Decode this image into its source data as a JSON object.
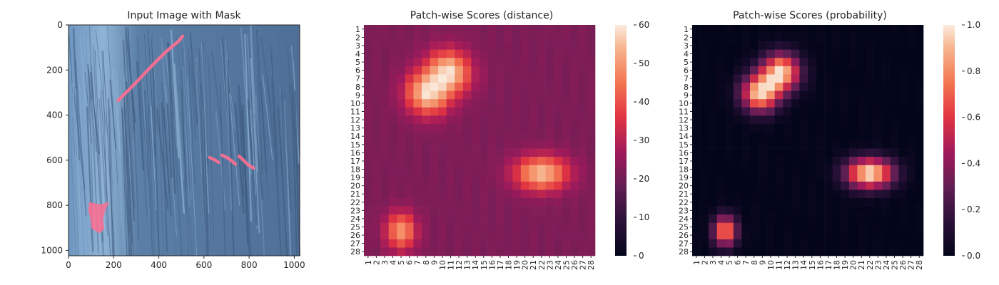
{
  "chart_data": [
    {
      "type": "image",
      "title": "Input Image with Mask",
      "xlabel": "",
      "ylabel": "",
      "xlim": [
        0,
        1024
      ],
      "ylim": [
        1024,
        0
      ],
      "xticks": [
        0,
        200,
        400,
        600,
        800,
        1000
      ],
      "yticks": [
        0,
        200,
        400,
        600,
        800,
        1000
      ],
      "image_colors": {
        "base": "#5b7fa6",
        "dark_grain": "#3e5a7e",
        "light_grain": "#8fb3d6",
        "mask": "#ff6f91"
      },
      "mask_regions": [
        {
          "kind": "line",
          "points": [
            [
              220,
              335
            ],
            [
              290,
              265
            ],
            [
              370,
              180
            ],
            [
              430,
              120
            ],
            [
              490,
              70
            ],
            [
              505,
              50
            ]
          ]
        },
        {
          "kind": "line",
          "points": [
            [
              625,
              588
            ],
            [
              650,
              600
            ],
            [
              665,
              610
            ]
          ]
        },
        {
          "kind": "line",
          "points": [
            [
              680,
              578
            ],
            [
              705,
              590
            ],
            [
              725,
              605
            ],
            [
              740,
              618
            ]
          ]
        },
        {
          "kind": "line",
          "points": [
            [
              755,
              582
            ],
            [
              775,
              600
            ],
            [
              795,
              620
            ],
            [
              820,
              635
            ]
          ]
        },
        {
          "kind": "blob",
          "points": [
            [
              95,
              790
            ],
            [
              140,
              800
            ],
            [
              175,
              790
            ],
            [
              160,
              820
            ],
            [
              150,
              860
            ],
            [
              155,
              905
            ],
            [
              135,
              920
            ],
            [
              105,
              900
            ],
            [
              100,
              860
            ],
            [
              90,
              820
            ]
          ]
        }
      ]
    },
    {
      "type": "heatmap",
      "title": "Patch-wise Scores (distance)",
      "rows": 28,
      "cols": 28,
      "labels": [
        "1",
        "2",
        "3",
        "4",
        "5",
        "6",
        "7",
        "8",
        "9",
        "10",
        "11",
        "12",
        "13",
        "14",
        "15",
        "16",
        "17",
        "18",
        "19",
        "20",
        "21",
        "22",
        "23",
        "24",
        "25",
        "26",
        "27",
        "28"
      ],
      "colorbar": {
        "min": 0,
        "max": 60,
        "ticks": [
          0,
          10,
          20,
          30,
          40,
          50,
          60
        ]
      },
      "colormap": "rocket",
      "model": {
        "baseline": 22,
        "peaks": [
          {
            "center_row": 6.5,
            "center_col": 8.5,
            "amplitude": 38,
            "sigma": 1.9,
            "along": [
              1,
              1
            ],
            "length": 3.2
          },
          {
            "center_row": 17.5,
            "center_col": 21.0,
            "amplitude": 33,
            "sigma_row": 1.5,
            "sigma_col": 2.3
          },
          {
            "center_row": 24.5,
            "center_col": 4.0,
            "amplitude": 28,
            "sigma_row": 1.6,
            "sigma_col": 1.3
          }
        ]
      }
    },
    {
      "type": "heatmap",
      "title": "Patch-wise Scores (probability)",
      "rows": 28,
      "cols": 28,
      "labels": [
        "1",
        "2",
        "3",
        "4",
        "5",
        "6",
        "7",
        "8",
        "9",
        "10",
        "11",
        "12",
        "13",
        "14",
        "15",
        "16",
        "17",
        "18",
        "19",
        "20",
        "21",
        "22",
        "23",
        "24",
        "25",
        "26",
        "27",
        "28"
      ],
      "colorbar": {
        "min": 0.0,
        "max": 1.0,
        "ticks": [
          "0.0",
          "0.2",
          "0.4",
          "0.6",
          "0.8",
          "1.0"
        ]
      },
      "colormap": "rocket",
      "model": {
        "baseline": 0.0,
        "peaks": [
          {
            "center_row": 6.5,
            "center_col": 9.0,
            "amplitude": 1.0,
            "sigma": 1.6,
            "along": [
              1,
              1
            ],
            "length": 3.4
          },
          {
            "center_row": 17.5,
            "center_col": 21.0,
            "amplitude": 1.0,
            "sigma_row": 1.3,
            "sigma_col": 2.0
          },
          {
            "center_row": 24.5,
            "center_col": 3.5,
            "amplitude": 0.8,
            "sigma_row": 1.3,
            "sigma_col": 1.0
          }
        ]
      }
    }
  ]
}
